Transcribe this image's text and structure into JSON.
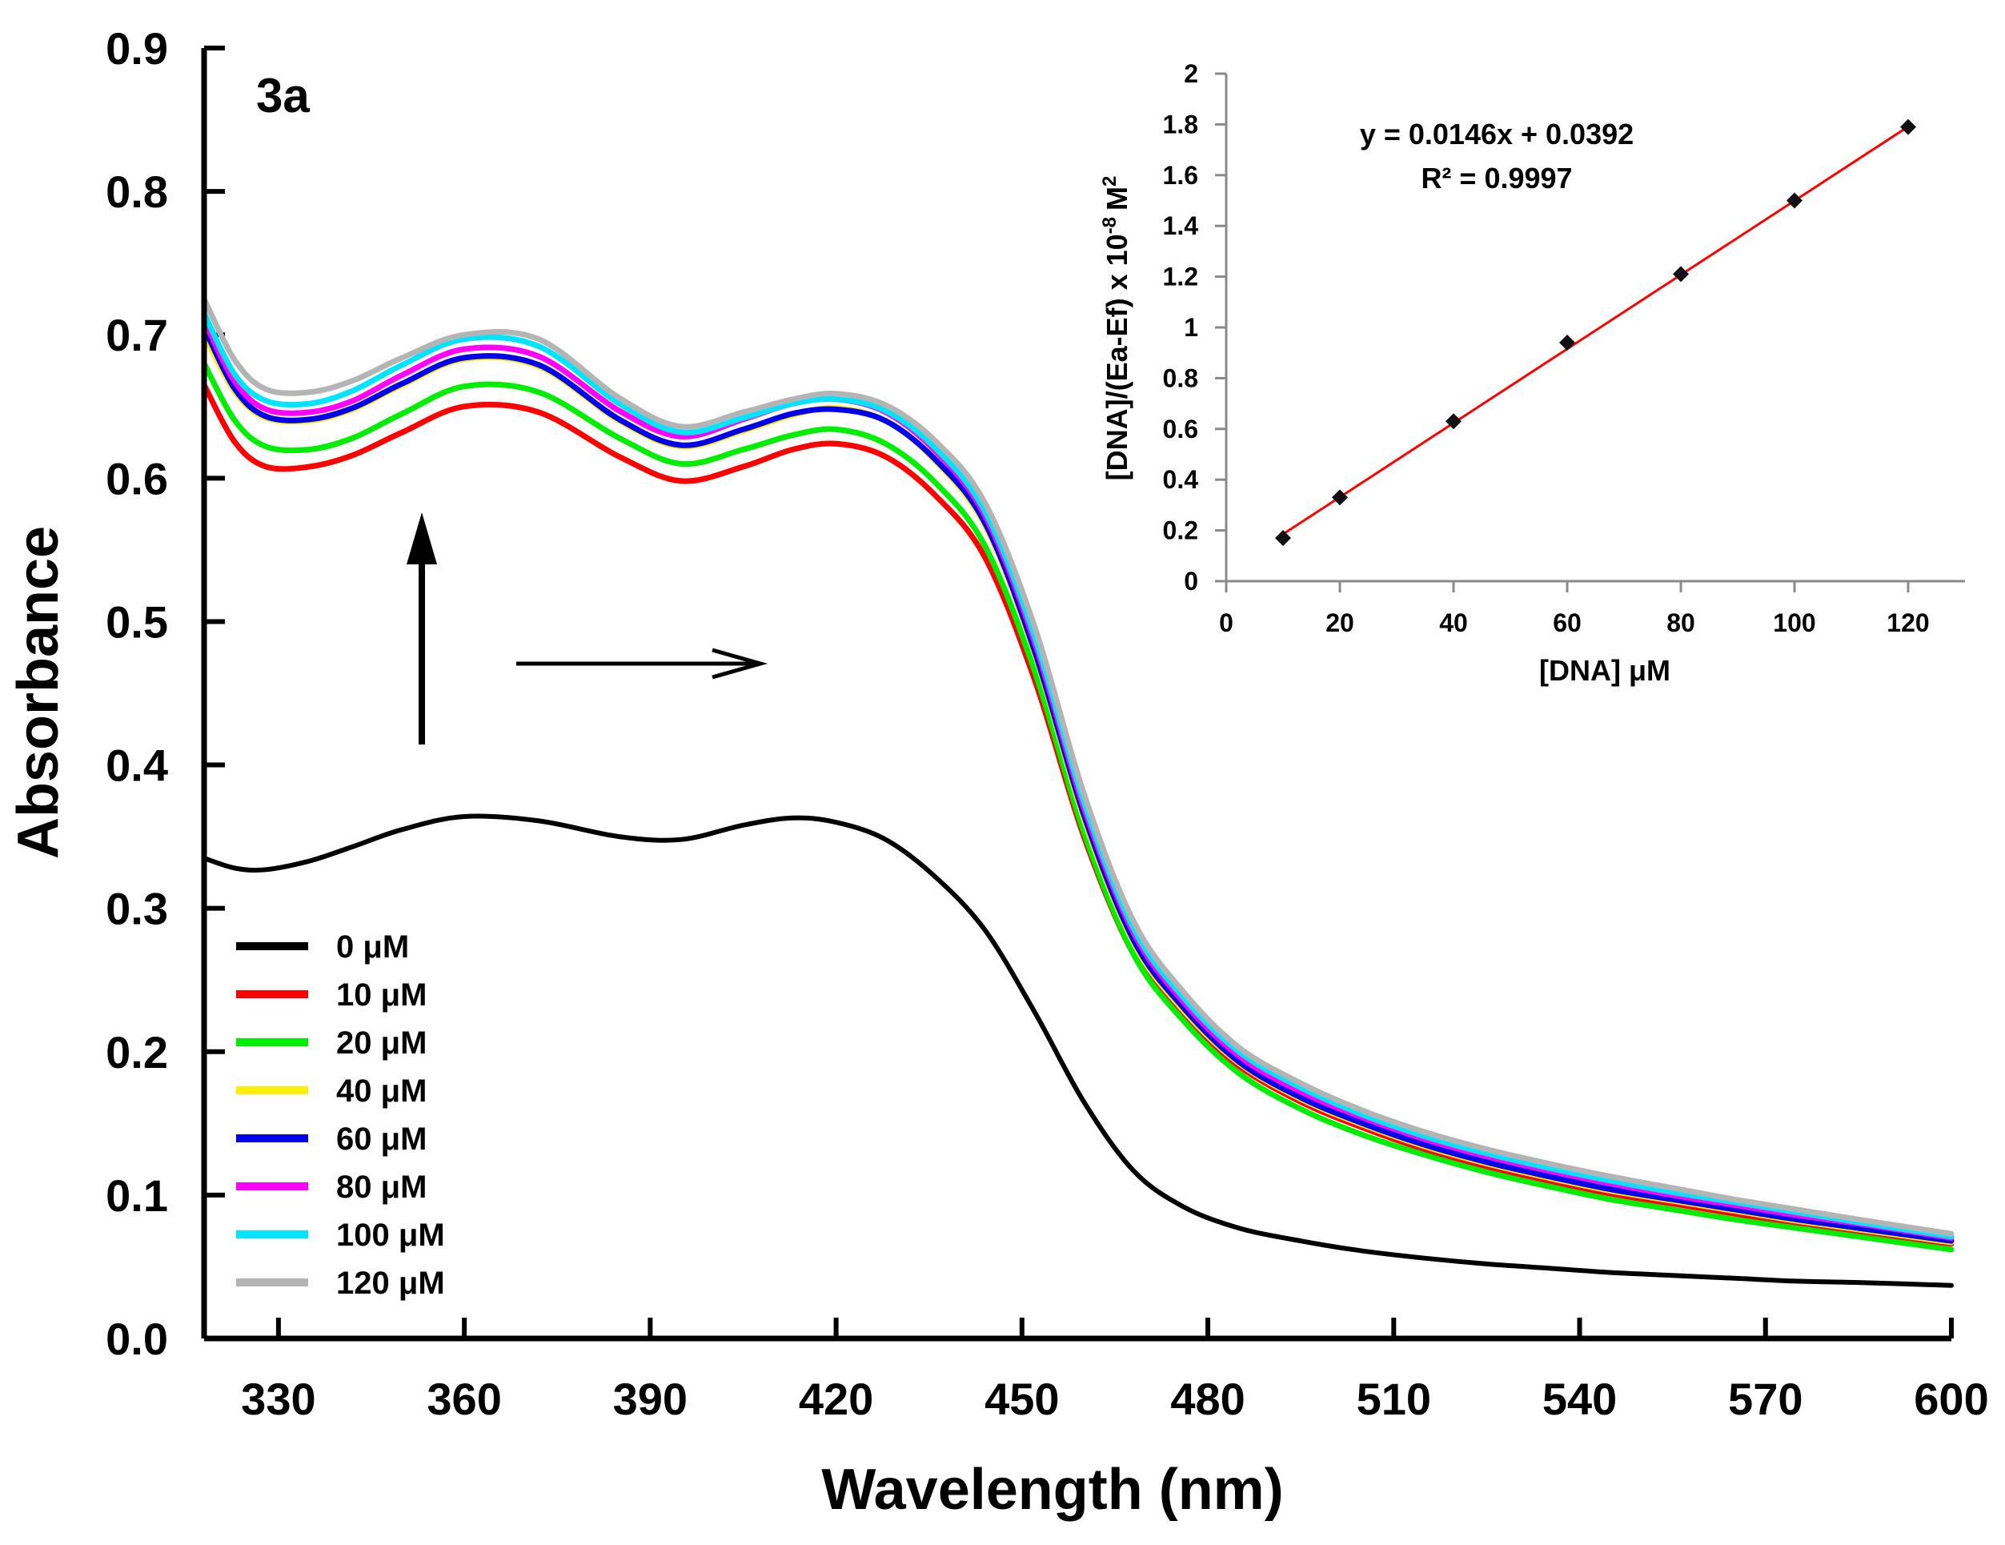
{
  "chart_data": [
    {
      "type": "line",
      "panel_label": "3a",
      "xlabel": "Wavelength (nm)",
      "ylabel": "Absorbance",
      "xlim": [
        318,
        600
      ],
      "ylim": [
        0,
        0.9
      ],
      "xticks": [
        330,
        360,
        390,
        420,
        450,
        480,
        510,
        540,
        570,
        600
      ],
      "yticks": [
        0.0,
        0.1,
        0.2,
        0.3,
        0.4,
        0.5,
        0.6,
        0.7,
        0.8,
        0.9
      ],
      "ytick_labels": [
        "0.0",
        "0.1",
        "0.2",
        "0.3",
        "0.4",
        "0.5",
        "0.6",
        "0.7",
        "0.8",
        "0.9"
      ],
      "x": [
        318,
        323,
        328,
        335,
        342,
        350,
        360,
        372,
        385,
        395,
        405,
        413,
        420,
        428,
        436,
        444,
        452,
        460,
        468,
        476,
        485,
        495,
        505,
        515,
        525,
        535,
        545,
        555,
        565,
        575,
        585,
        600
      ],
      "series": [
        {
          "name": "0 μM",
          "color": "#000000",
          "values": [
            0.335,
            0.328,
            0.327,
            0.333,
            0.343,
            0.355,
            0.364,
            0.361,
            0.35,
            0.348,
            0.358,
            0.363,
            0.36,
            0.348,
            0.322,
            0.285,
            0.228,
            0.165,
            0.117,
            0.092,
            0.077,
            0.068,
            0.061,
            0.056,
            0.052,
            0.049,
            0.046,
            0.044,
            0.042,
            0.04,
            0.039,
            0.037
          ]
        },
        {
          "name": "10 μM",
          "color": "#ff0000",
          "values": [
            0.665,
            0.625,
            0.608,
            0.608,
            0.616,
            0.632,
            0.65,
            0.646,
            0.615,
            0.598,
            0.608,
            0.62,
            0.624,
            0.615,
            0.588,
            0.545,
            0.46,
            0.35,
            0.268,
            0.225,
            0.19,
            0.165,
            0.147,
            0.132,
            0.12,
            0.11,
            0.101,
            0.094,
            0.087,
            0.08,
            0.074,
            0.066
          ]
        },
        {
          "name": "20 μM",
          "color": "#00ee00",
          "values": [
            0.68,
            0.64,
            0.622,
            0.62,
            0.628,
            0.645,
            0.664,
            0.66,
            0.628,
            0.61,
            0.62,
            0.63,
            0.634,
            0.624,
            0.597,
            0.553,
            0.466,
            0.353,
            0.268,
            0.222,
            0.185,
            0.16,
            0.142,
            0.128,
            0.116,
            0.106,
            0.097,
            0.09,
            0.083,
            0.077,
            0.071,
            0.062
          ]
        },
        {
          "name": "40 μM",
          "color": "#ffee00",
          "values": [
            0.7,
            0.66,
            0.642,
            0.64,
            0.648,
            0.665,
            0.683,
            0.678,
            0.64,
            0.622,
            0.633,
            0.644,
            0.649,
            0.64,
            0.612,
            0.567,
            0.478,
            0.362,
            0.276,
            0.229,
            0.192,
            0.167,
            0.149,
            0.134,
            0.122,
            0.112,
            0.103,
            0.096,
            0.089,
            0.082,
            0.076,
            0.067
          ]
        },
        {
          "name": "60 μM",
          "color": "#0000ee",
          "values": [
            0.705,
            0.662,
            0.643,
            0.641,
            0.649,
            0.666,
            0.684,
            0.679,
            0.641,
            0.623,
            0.634,
            0.645,
            0.648,
            0.64,
            0.613,
            0.569,
            0.48,
            0.365,
            0.278,
            0.231,
            0.193,
            0.168,
            0.15,
            0.135,
            0.123,
            0.113,
            0.104,
            0.097,
            0.09,
            0.083,
            0.077,
            0.068
          ]
        },
        {
          "name": "80 μM",
          "color": "#ff00ff",
          "values": [
            0.71,
            0.667,
            0.648,
            0.646,
            0.654,
            0.672,
            0.69,
            0.685,
            0.647,
            0.629,
            0.641,
            0.652,
            0.655,
            0.646,
            0.619,
            0.574,
            0.486,
            0.37,
            0.283,
            0.235,
            0.197,
            0.172,
            0.154,
            0.139,
            0.127,
            0.117,
            0.108,
            0.1,
            0.093,
            0.086,
            0.08,
            0.07
          ]
        },
        {
          "name": "100 μM",
          "color": "#00e5ff",
          "values": [
            0.715,
            0.672,
            0.654,
            0.652,
            0.661,
            0.679,
            0.697,
            0.692,
            0.652,
            0.632,
            0.642,
            0.652,
            0.655,
            0.647,
            0.621,
            0.577,
            0.49,
            0.374,
            0.286,
            0.238,
            0.2,
            0.175,
            0.156,
            0.141,
            0.129,
            0.119,
            0.11,
            0.102,
            0.095,
            0.088,
            0.081,
            0.071
          ]
        },
        {
          "name": "120 μM",
          "color": "#b4b4b4",
          "values": [
            0.725,
            0.682,
            0.662,
            0.66,
            0.668,
            0.684,
            0.7,
            0.697,
            0.656,
            0.636,
            0.646,
            0.655,
            0.659,
            0.651,
            0.626,
            0.583,
            0.497,
            0.38,
            0.291,
            0.242,
            0.203,
            0.178,
            0.159,
            0.144,
            0.132,
            0.122,
            0.113,
            0.105,
            0.097,
            0.09,
            0.083,
            0.073
          ]
        }
      ]
    },
    {
      "type": "scatter",
      "xlabel": "[DNA] μM",
      "ylabel": "[DNA]/(Ea-Ef) x 10",
      "ylabel_exponent": "-8",
      "ylabel_unit": "M",
      "ylabel_unit_exponent": "2",
      "xlim": [
        0,
        130
      ],
      "ylim": [
        0,
        2
      ],
      "xticks": [
        0,
        20,
        40,
        60,
        80,
        100,
        120
      ],
      "yticks": [
        0,
        0.2,
        0.4,
        0.6,
        0.8,
        1,
        1.2,
        1.4,
        1.6,
        1.8,
        2
      ],
      "points": {
        "x": [
          10,
          20,
          40,
          60,
          80,
          100,
          120
        ],
        "y": [
          0.17,
          0.33,
          0.63,
          0.94,
          1.21,
          1.5,
          1.79
        ]
      },
      "fit": {
        "slope": 0.0146,
        "intercept": 0.0392,
        "x_range": [
          10,
          120
        ],
        "color": "#ff0000"
      },
      "equation": "y = 0.0146x + 0.0392",
      "r2_label": "R² = 0.9997"
    }
  ]
}
